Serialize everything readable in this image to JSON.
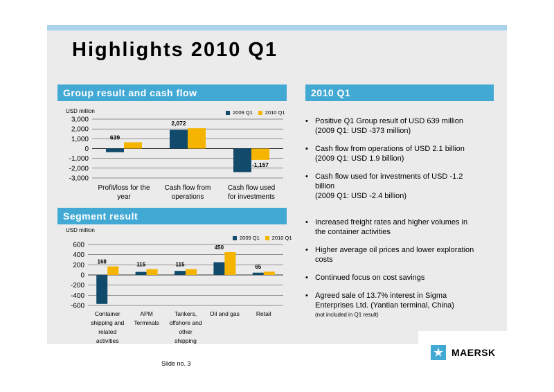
{
  "title": "Highlights 2010 Q1",
  "colors": {
    "series_2009": "#124a6b",
    "series_2010": "#f4b400",
    "header": "#42a9d4"
  },
  "sections": {
    "group": "Group result and cash flow",
    "q1": "2010 Q1",
    "segment": "Segment result"
  },
  "charts": {
    "group": {
      "unit": "USD million",
      "legend": [
        "2009 Q1",
        "2010 Q1"
      ]
    },
    "segment": {
      "unit": "USD million",
      "legend": [
        "2009 Q1",
        "2010 Q1"
      ]
    }
  },
  "chart_data": [
    {
      "type": "bar",
      "title": "Group result and cash flow",
      "ylabel": "USD million",
      "ylim": [
        -3000,
        3000
      ],
      "yticks": [
        "3,000",
        "2,000",
        "1,000",
        "0",
        "-1,000",
        "-2,000",
        "-3,000"
      ],
      "categories": [
        "Profit/loss for the year",
        "Cash flow from operations",
        "Cash flow used for investments"
      ],
      "category_lines": [
        [
          "Profit/loss for the",
          "year"
        ],
        [
          "Cash flow from",
          "operations"
        ],
        [
          "Cash flow used",
          "for investments"
        ]
      ],
      "series": [
        {
          "name": "2009 Q1",
          "values": [
            -373,
            1900,
            -2400
          ]
        },
        {
          "name": "2010 Q1",
          "values": [
            639,
            2072,
            -1157
          ]
        }
      ],
      "data_labels": [
        "639",
        "2,072",
        "-1,157"
      ],
      "legend": "top-right",
      "grid": true
    },
    {
      "type": "bar",
      "title": "Segment result",
      "ylabel": "USD million",
      "ylim": [
        -600,
        600
      ],
      "yticks": [
        "600",
        "400",
        "200",
        "0",
        "-200",
        "-400",
        "-600"
      ],
      "categories": [
        "Container shipping and related activities",
        "APM Terminals",
        "Tankers, offshore and other shipping",
        "Oil and gas",
        "Retail"
      ],
      "category_lines": [
        [
          "Container",
          "shipping and",
          "related",
          "activities"
        ],
        [
          "APM",
          "Terminals"
        ],
        [
          "Tankers,",
          "offshore and",
          "other",
          "shipping"
        ],
        [
          "Oil and gas"
        ],
        [
          "Retail"
        ]
      ],
      "series": [
        {
          "name": "2009 Q1",
          "values": [
            -570,
            60,
            80,
            250,
            45
          ]
        },
        {
          "name": "2010 Q1",
          "values": [
            168,
            115,
            115,
            450,
            65
          ]
        }
      ],
      "data_labels": [
        "168",
        "115",
        "115",
        "450",
        "65"
      ],
      "legend": "top-right",
      "grid": true
    }
  ],
  "bullets_top": [
    {
      "lines": [
        "Positive Q1 Group result of USD 639 million",
        "(2009 Q1: USD -373 million)"
      ]
    },
    {
      "lines": [
        "Cash flow from operations of USD 2.1 billion",
        "(2009 Q1: USD 1.9 billion)"
      ]
    },
    {
      "lines": [
        "Cash flow used for investments of USD -1.2",
        "billion",
        "(2009 Q1: USD -2.4 billion)"
      ]
    }
  ],
  "bullets_bottom": [
    {
      "lines": [
        "Increased freight rates and higher volumes in",
        "the container activities"
      ]
    },
    {
      "lines": [
        "Higher average oil prices and lower exploration",
        "costs"
      ]
    },
    {
      "lines": [
        "Continued focus on cost savings"
      ]
    },
    {
      "lines": [
        "Agreed sale of 13.7% interest in Sigma",
        "Enterprises Ltd. (Yantian terminal, China)"
      ],
      "note": "(not included in Q1 result)"
    }
  ],
  "footer": {
    "slide_no": "Slide no. 3",
    "logo": "MAERSK"
  }
}
